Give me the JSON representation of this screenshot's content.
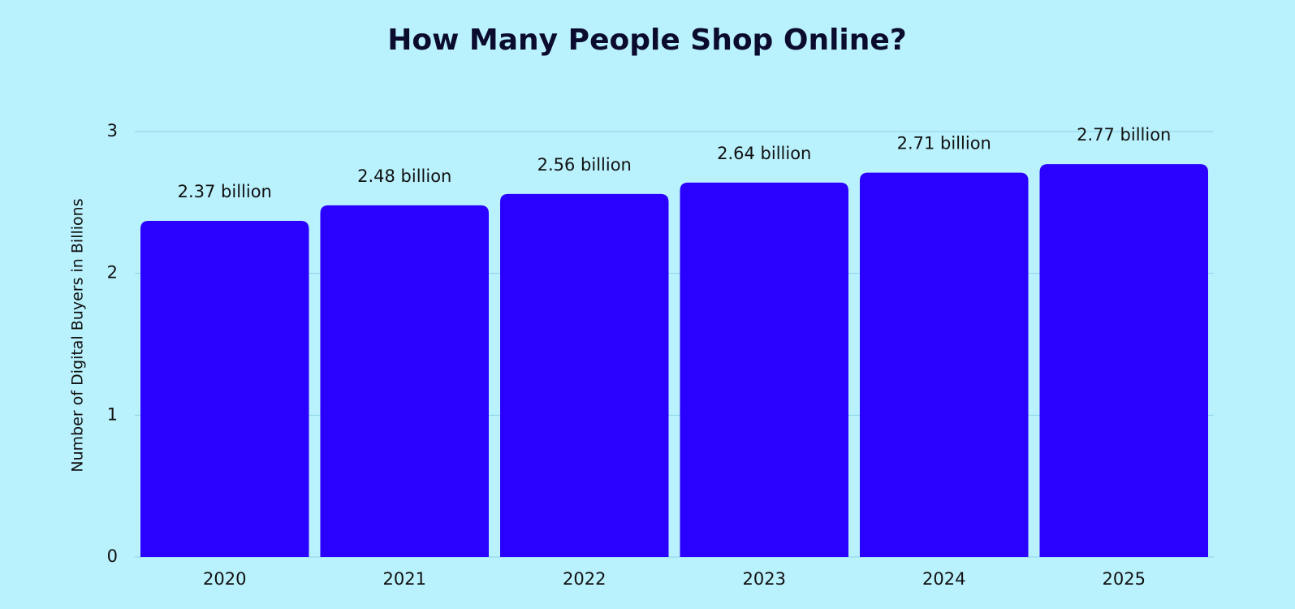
{
  "chart_data": {
    "type": "bar",
    "title": "How Many People Shop Online?",
    "y_label": "Number of Digital Buyers in Billions",
    "categories": [
      "2020",
      "2021",
      "2022",
      "2023",
      "2024",
      "2025"
    ],
    "values": [
      2.37,
      2.48,
      2.56,
      2.64,
      2.71,
      2.77
    ],
    "value_labels": [
      "2.37 billion",
      "2.48 billion",
      "2.56 billion",
      "2.64 billion",
      "2.71 billion",
      "2.77 billion"
    ],
    "color": "#2a00ff",
    "ylim": [
      0,
      3
    ],
    "yticks": [
      0,
      1,
      2,
      3
    ],
    "grid": true
  }
}
